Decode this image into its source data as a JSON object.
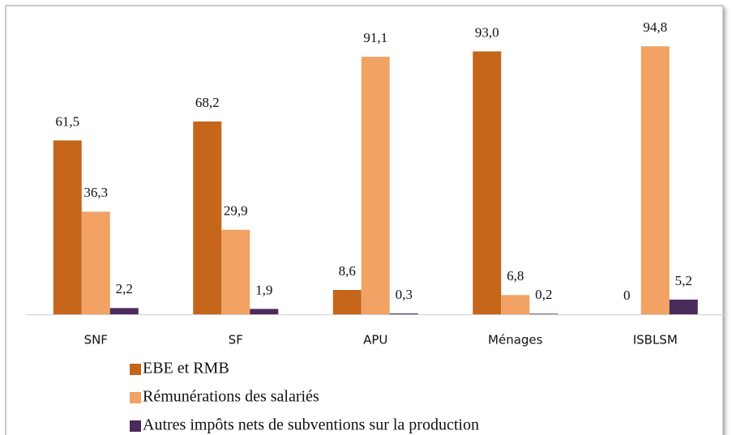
{
  "chart_data": {
    "type": "bar",
    "categories": [
      "SNF",
      "SF",
      "APU",
      "Ménages",
      "ISBLSM"
    ],
    "series": [
      {
        "name": "EBE et RMB",
        "color": "#c5661b",
        "values": [
          61.5,
          68.2,
          8.6,
          93.0,
          0
        ],
        "value_labels": [
          "61,5",
          "68,2",
          "8,6",
          "93,0",
          "0"
        ]
      },
      {
        "name": "Rémunérations des salariés",
        "color": "#f1a264",
        "values": [
          36.3,
          29.9,
          91.1,
          6.8,
          94.8
        ],
        "value_labels": [
          "36,3",
          "29,9",
          "91,1",
          "6,8",
          "94,8"
        ]
      },
      {
        "name": "Autres impôts nets de subventions sur la production",
        "color": "#4b2a5c",
        "values": [
          2.2,
          1.9,
          0.3,
          0.2,
          5.2
        ],
        "value_labels": [
          "2,2",
          "1,9",
          "0,3",
          "0,2",
          "5,2"
        ]
      }
    ],
    "legend": "bottom"
  }
}
